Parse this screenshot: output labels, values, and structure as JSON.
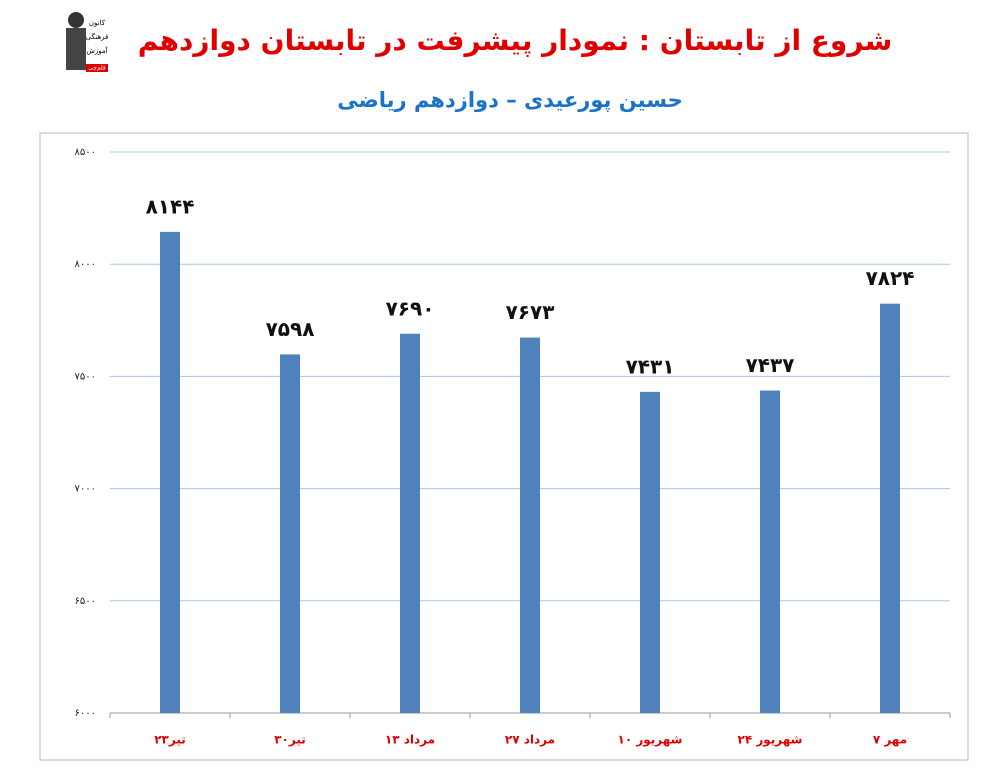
{
  "logo": {
    "lines": [
      "کانون",
      "فرهنگی",
      "آموزش",
      "قلم‌چی"
    ]
  },
  "chart_data": {
    "type": "bar",
    "title": "شروع از تابستان : نمودار پیشرفت در تابستان دوازدهم",
    "subtitle": "حسین پورعیدی – دوازدهم ریاضی",
    "categories": [
      "۲۳تیر",
      "۳۰تیر",
      "۱۳ مرداد",
      "۲۷ مرداد",
      "۱۰ شهریور",
      "۲۴ شهریور",
      "۷ مهر"
    ],
    "values": [
      8144,
      7598,
      7690,
      7673,
      7431,
      7437,
      7824
    ],
    "value_labels": [
      "۸۱۴۴",
      "۷۵۹۸",
      "۷۶۹۰",
      "۷۶۷۳",
      "۷۴۳۱",
      "۷۴۳۷",
      "۷۸۲۴"
    ],
    "color": "#4f81bd",
    "ylim": [
      6000,
      8500
    ],
    "yticks": [
      {
        "value": 6000,
        "label": "۶۰۰۰"
      },
      {
        "value": 6500,
        "label": "۶۵۰۰"
      },
      {
        "value": 7000,
        "label": "۷۰۰۰"
      },
      {
        "value": 7500,
        "label": "۷۵۰۰"
      },
      {
        "value": 8000,
        "label": "۸۰۰۰"
      },
      {
        "value": 8500,
        "label": "۸۵۰۰"
      }
    ],
    "grid": true
  }
}
